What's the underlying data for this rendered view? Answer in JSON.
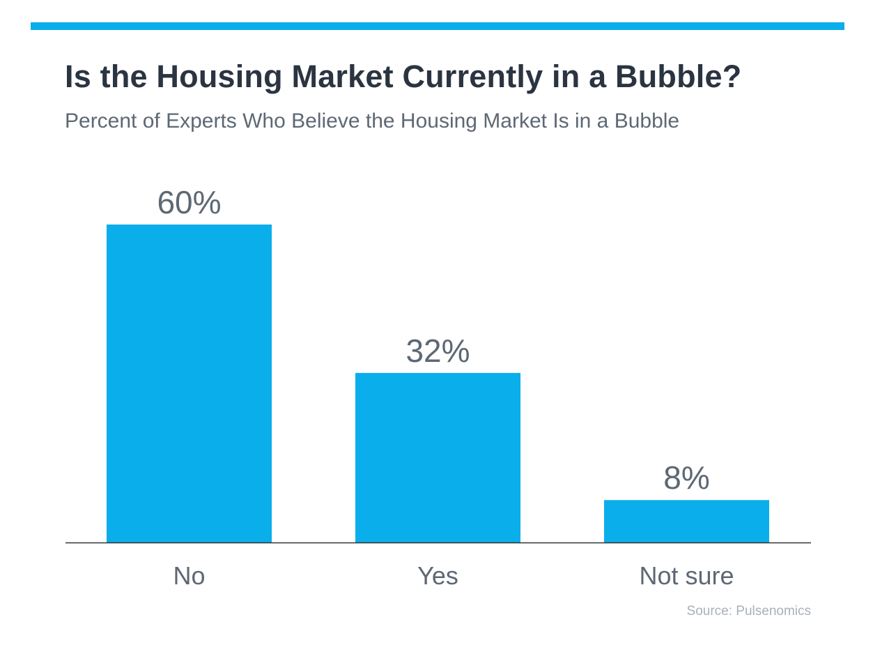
{
  "title": "Is the Housing Market Currently in a Bubble?",
  "subtitle": "Percent of Experts Who Believe the Housing Market Is in a Bubble",
  "source": "Source: Pulsenomics",
  "colors": {
    "accent": "#0aaeeb",
    "bar": "#0aaeeb",
    "title": "#2b3441",
    "value_label": "#5d6874",
    "category_label": "#5d6874",
    "axis": "#333333"
  },
  "chart_data": {
    "type": "bar",
    "title": "Is the Housing Market Currently in a Bubble?",
    "subtitle": "Percent of Experts Who Believe the Housing Market Is in a Bubble",
    "categories": [
      "No",
      "Yes",
      "Not sure"
    ],
    "values": [
      60,
      32,
      8
    ],
    "value_labels": [
      "60%",
      "32%",
      "8%"
    ],
    "xlabel": "",
    "ylabel": "",
    "ylim": [
      0,
      60
    ],
    "grid": false,
    "legend": "none"
  }
}
